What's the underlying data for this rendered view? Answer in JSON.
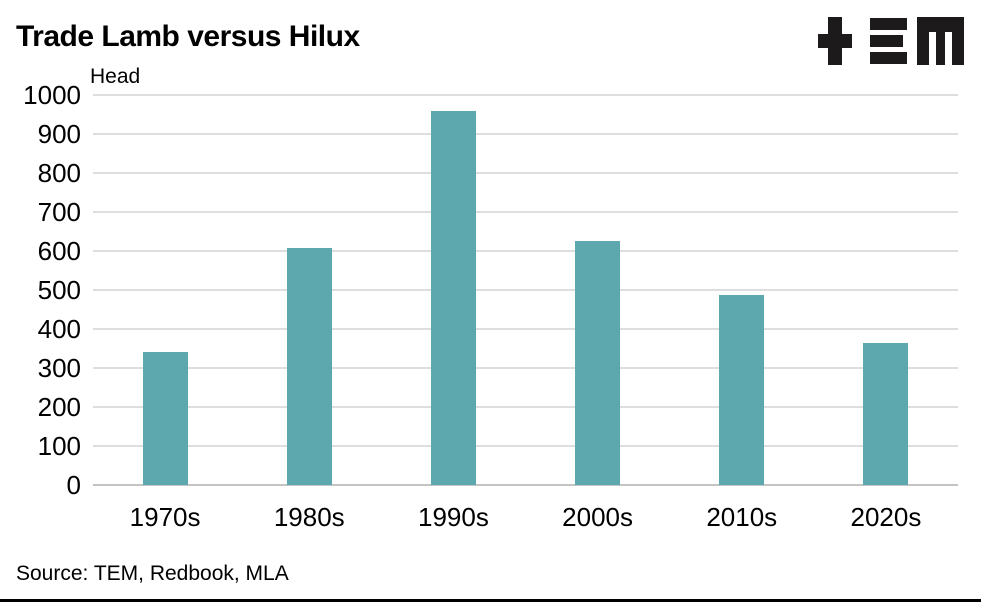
{
  "header": {
    "title": "Trade Lamb versus Hilux"
  },
  "chart_data": {
    "type": "bar",
    "title": "Trade Lamb versus Hilux",
    "ylabel": "Head",
    "xlabel": "",
    "categories": [
      "1970s",
      "1980s",
      "1990s",
      "2000s",
      "2010s",
      "2020s"
    ],
    "values": [
      340,
      608,
      958,
      626,
      487,
      363
    ],
    "ylim": [
      0,
      1000
    ],
    "yticks": [
      0,
      100,
      200,
      300,
      400,
      500,
      600,
      700,
      800,
      900,
      1000
    ],
    "grid": "horizontal",
    "legend": "none",
    "bar_color": "#5da8ae",
    "source": "Source: TEM, Redbook, MLA"
  },
  "footer": {
    "source": "Source: TEM, Redbook, MLA"
  },
  "colors": {
    "bar": "#5da8ae",
    "gridline": "#dedede",
    "baseline": "#c4c4c4",
    "logo": "#1d1a1b",
    "text": "#000000"
  }
}
